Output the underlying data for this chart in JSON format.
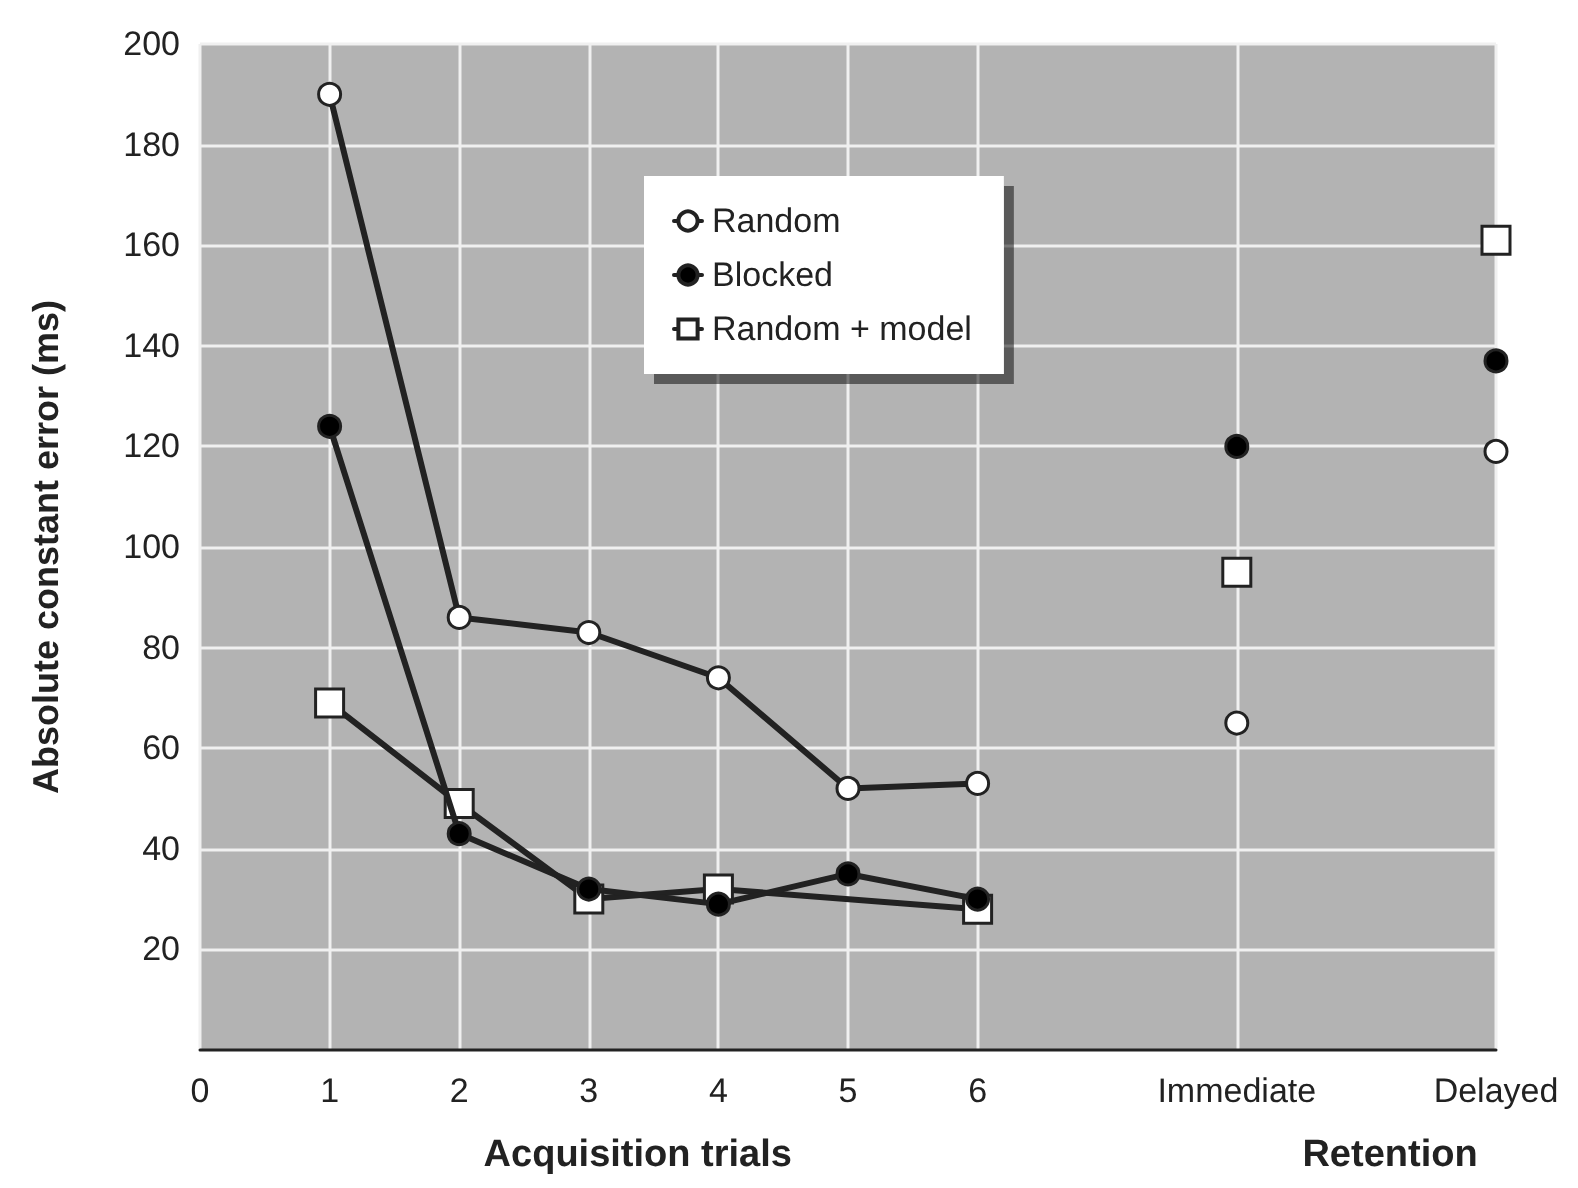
{
  "chart_data": {
    "type": "line",
    "xlabel": "Acquisition trials",
    "ylabel": "Absolute constant error (ms)",
    "annotations": [
      "Retention"
    ],
    "xlim": [
      0,
      10
    ],
    "xticks": [
      0,
      1,
      2,
      3,
      4,
      5,
      6,
      {
        "value": 8,
        "label": "Immediate"
      },
      {
        "value": 10,
        "label": "Delayed"
      }
    ],
    "ylim": [
      0,
      200
    ],
    "yticks": [
      20,
      40,
      60,
      80,
      100,
      120,
      140,
      160,
      180,
      200
    ],
    "grid": true,
    "legend": "top right",
    "line_style": "solid",
    "series": [
      {
        "name": "Random",
        "color": "#ffffff",
        "marker": "circle",
        "x": [
          1,
          2,
          3,
          4,
          5,
          6,
          7,
          8,
          9,
          10
        ],
        "values": [
          190,
          86,
          83,
          74,
          52,
          53,
          null,
          65,
          null,
          119
        ]
      },
      {
        "name": "Blocked",
        "color": "#000000",
        "marker": "circle",
        "x": [
          1,
          2,
          3,
          4,
          5,
          6,
          7,
          8,
          9,
          10
        ],
        "values": [
          124,
          43,
          32,
          29,
          35,
          30,
          null,
          120,
          null,
          137
        ]
      },
      {
        "name": "Random + model",
        "color": "#ffffff",
        "marker": "square",
        "x": [
          1,
          2,
          3,
          4,
          6,
          7,
          8,
          9,
          10
        ],
        "values": [
          69,
          49,
          30,
          32,
          28,
          null,
          95,
          null,
          161
        ]
      }
    ]
  }
}
